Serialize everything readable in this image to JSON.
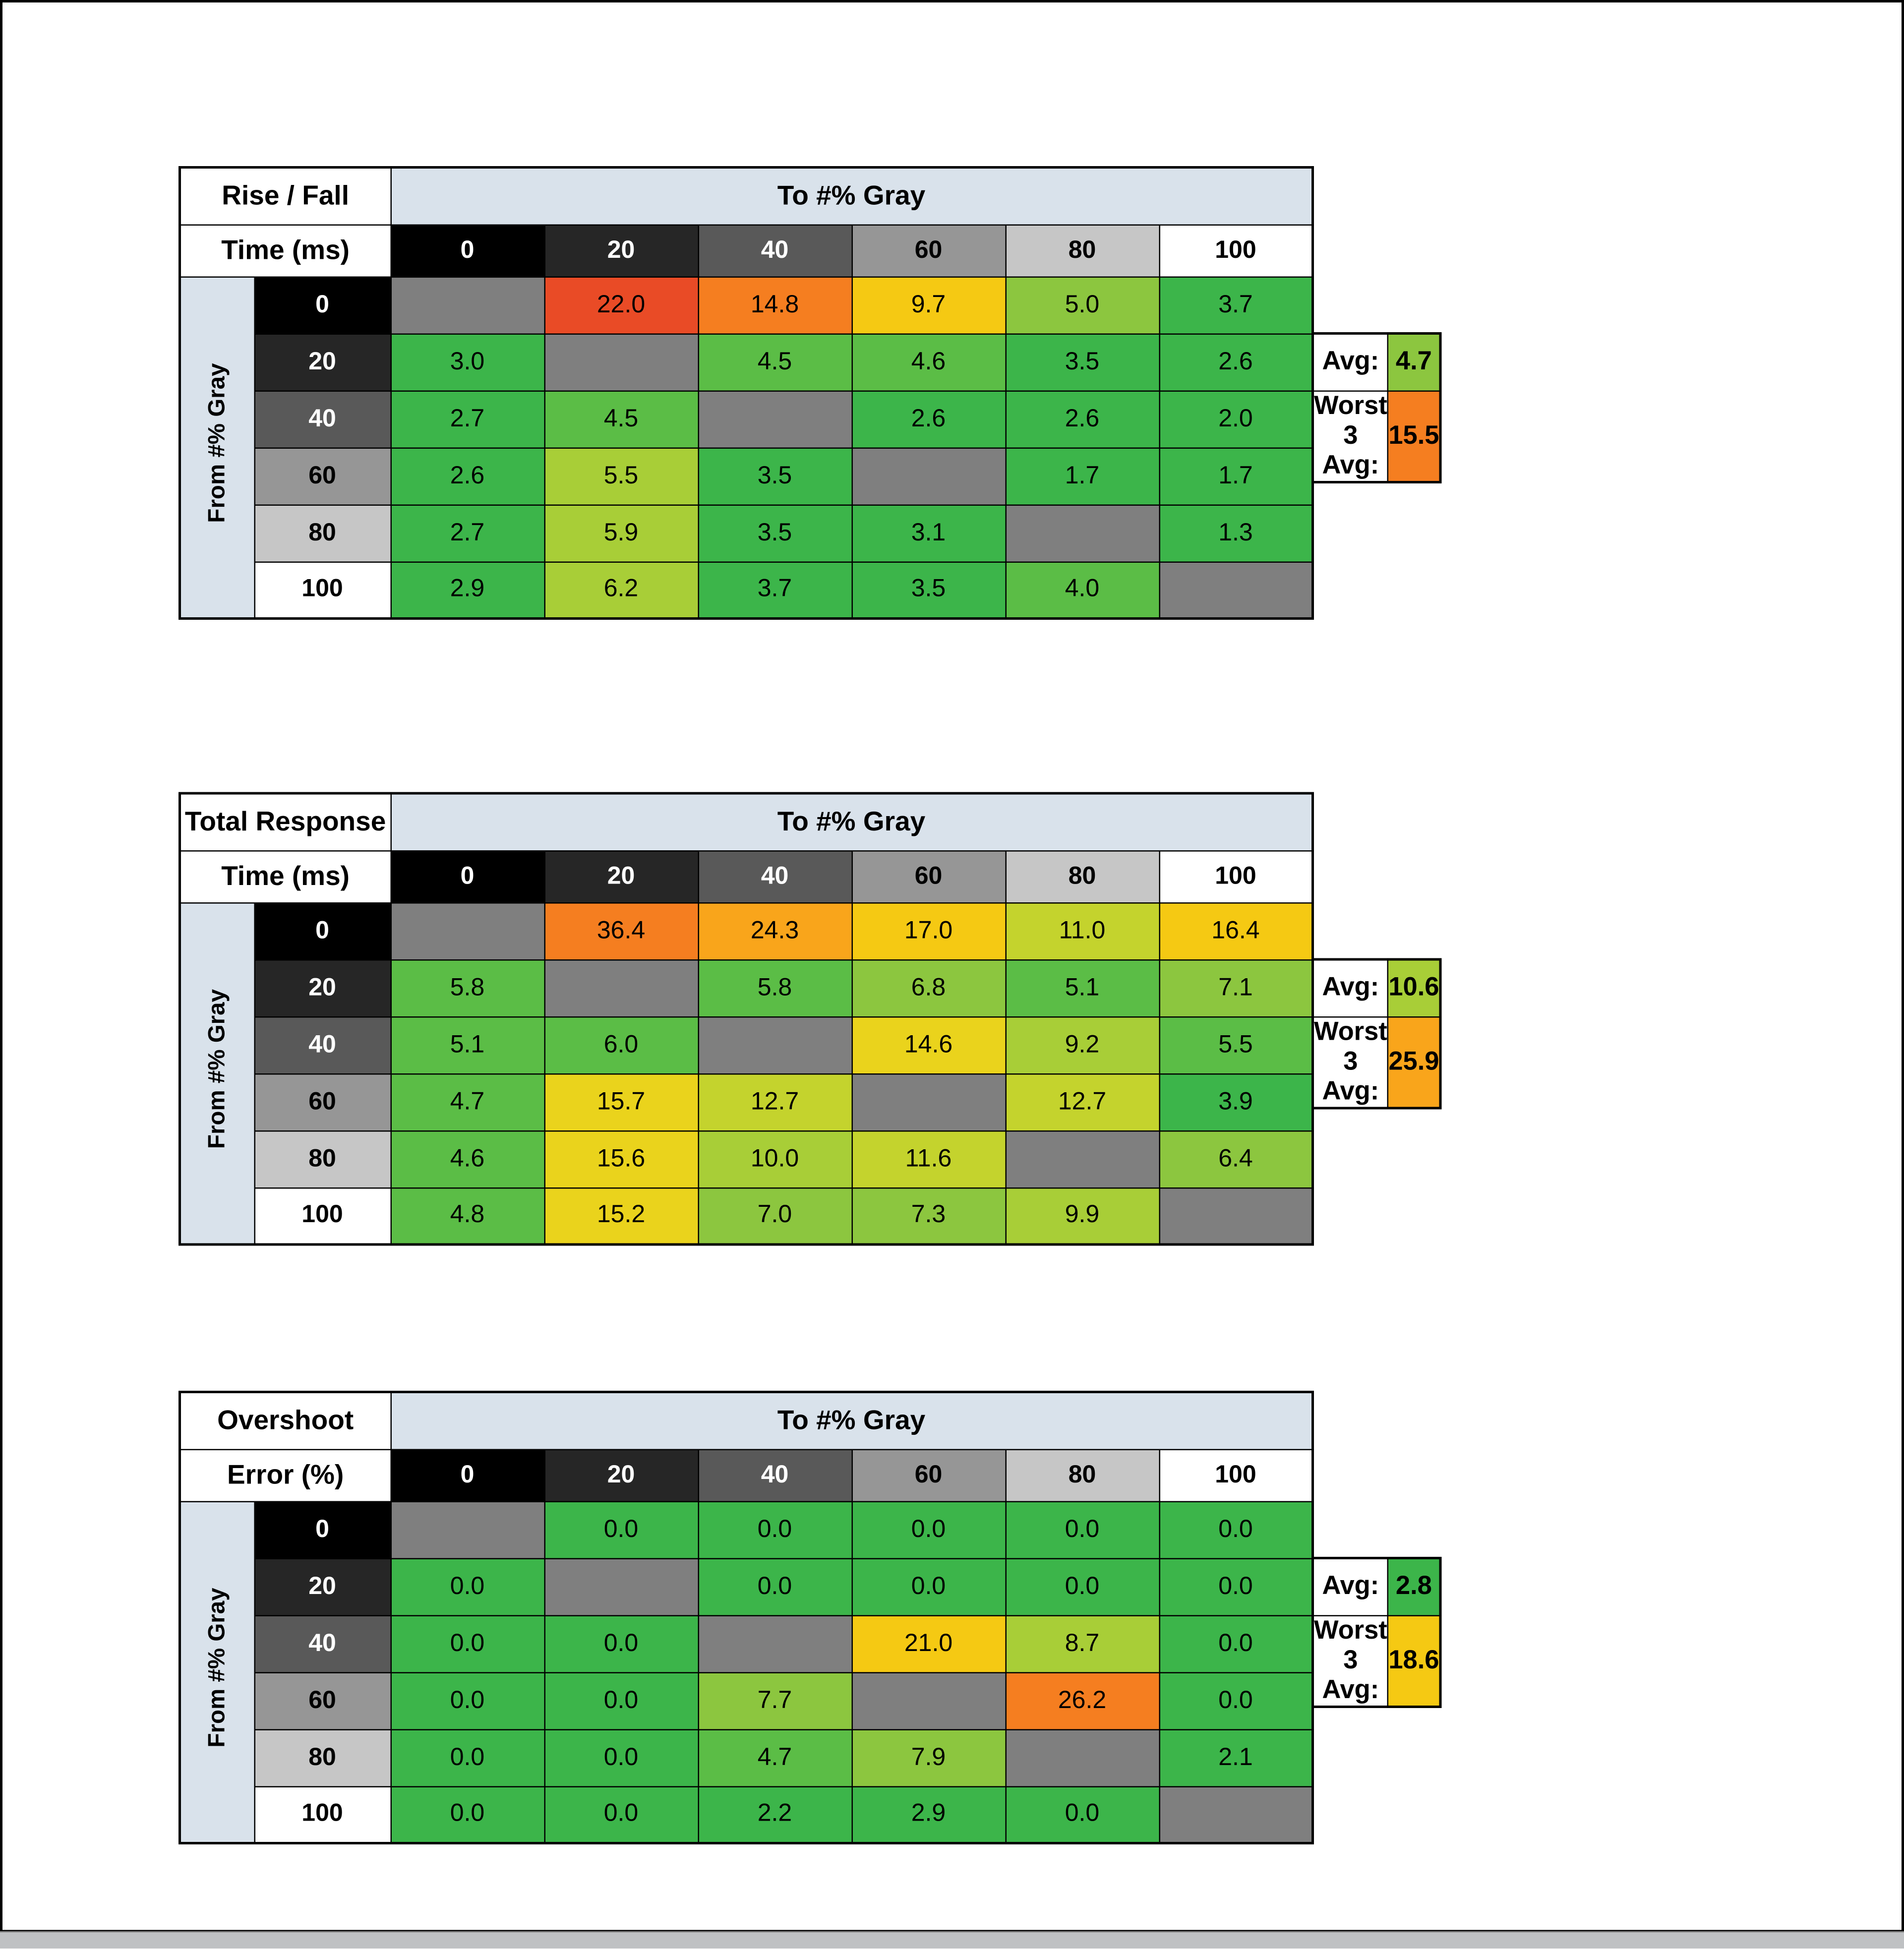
{
  "shared": {
    "to_label": "To #% Gray",
    "from_label": "From #% Gray",
    "col_headers": [
      "0",
      "20",
      "40",
      "60",
      "80",
      "100"
    ],
    "row_headers": [
      "0",
      "20",
      "40",
      "60",
      "80",
      "100"
    ],
    "avg_label": "Avg:",
    "worst_label": "Worst 3 Avg:",
    "header_band_bg": "#D9E2EB",
    "diagonal_bg": "#7F7F7F",
    "gray_scale_bg": [
      "#000000",
      "#262626",
      "#595959",
      "#969696",
      "#C6C6C6",
      "#FFFFFF"
    ],
    "gray_scale_fg": [
      "#FFFFFF",
      "#FFFFFF",
      "#FFFFFF",
      "#000000",
      "#000000",
      "#000000"
    ]
  },
  "chart_data": [
    {
      "type": "heatmap",
      "title": "Rise / Fall Time (ms)",
      "xlabel": "To #% Gray",
      "ylabel": "From #% Gray",
      "x_categories": [
        0,
        20,
        40,
        60,
        80,
        100
      ],
      "y_categories": [
        0,
        20,
        40,
        60,
        80,
        100
      ],
      "values": [
        [
          null,
          22.0,
          14.8,
          9.7,
          5.0,
          3.7
        ],
        [
          3.0,
          null,
          4.5,
          4.6,
          3.5,
          2.6
        ],
        [
          2.7,
          4.5,
          null,
          2.6,
          2.6,
          2.0
        ],
        [
          2.6,
          5.5,
          3.5,
          null,
          1.7,
          1.7
        ],
        [
          2.7,
          5.9,
          3.5,
          3.1,
          null,
          1.3
        ],
        [
          2.9,
          6.2,
          3.7,
          3.5,
          4.0,
          null
        ]
      ],
      "avg": 4.7,
      "worst_3_avg": 15.5
    },
    {
      "type": "heatmap",
      "title": "Total Response Time (ms)",
      "xlabel": "To #% Gray",
      "ylabel": "From #% Gray",
      "x_categories": [
        0,
        20,
        40,
        60,
        80,
        100
      ],
      "y_categories": [
        0,
        20,
        40,
        60,
        80,
        100
      ],
      "values": [
        [
          null,
          36.4,
          24.3,
          17.0,
          11.0,
          16.4
        ],
        [
          5.8,
          null,
          5.8,
          6.8,
          5.1,
          7.1
        ],
        [
          5.1,
          6.0,
          null,
          14.6,
          9.2,
          5.5
        ],
        [
          4.7,
          15.7,
          12.7,
          null,
          12.7,
          3.9
        ],
        [
          4.6,
          15.6,
          10.0,
          11.6,
          null,
          6.4
        ],
        [
          4.8,
          15.2,
          7.0,
          7.3,
          9.9,
          null
        ]
      ],
      "avg": 10.6,
      "worst_3_avg": 25.9
    },
    {
      "type": "heatmap",
      "title": "Overshoot Error (%)",
      "xlabel": "To #% Gray",
      "ylabel": "From #% Gray",
      "x_categories": [
        0,
        20,
        40,
        60,
        80,
        100
      ],
      "y_categories": [
        0,
        20,
        40,
        60,
        80,
        100
      ],
      "values": [
        [
          null,
          0.0,
          0.0,
          0.0,
          0.0,
          0.0
        ],
        [
          0.0,
          null,
          0.0,
          0.0,
          0.0,
          0.0
        ],
        [
          0.0,
          0.0,
          null,
          21.0,
          8.7,
          0.0
        ],
        [
          0.0,
          0.0,
          7.7,
          null,
          26.2,
          0.0
        ],
        [
          0.0,
          0.0,
          4.7,
          7.9,
          null,
          2.1
        ],
        [
          0.0,
          0.0,
          2.2,
          2.9,
          0.0,
          null
        ]
      ],
      "avg": 2.8,
      "worst_3_avg": 18.6
    }
  ],
  "tables": [
    {
      "title_line1": "Rise / Fall",
      "title_line2": "Time (ms)",
      "avg": {
        "value": "4.7",
        "color": "#8CC63F"
      },
      "worst": {
        "value": "15.5",
        "color": "#F57E20"
      },
      "cell_colors": [
        [
          null,
          "#E94B26",
          "#F57E20",
          "#F5C913",
          "#8CC63F",
          "#3CB54A"
        ],
        [
          "#3CB54A",
          null,
          "#5BBD46",
          "#5BBD46",
          "#3CB54A",
          "#3CB54A"
        ],
        [
          "#3CB54A",
          "#5BBD46",
          null,
          "#3CB54A",
          "#3CB54A",
          "#3CB54A"
        ],
        [
          "#3CB54A",
          "#A8CE37",
          "#3CB54A",
          null,
          "#3CB54A",
          "#3CB54A"
        ],
        [
          "#3CB54A",
          "#A8CE37",
          "#3CB54A",
          "#3CB54A",
          null,
          "#3CB54A"
        ],
        [
          "#3CB54A",
          "#A8CE37",
          "#3CB54A",
          "#3CB54A",
          "#5BBD46",
          null
        ]
      ]
    },
    {
      "title_line1": "Total Response",
      "title_line2": "Time (ms)",
      "avg": {
        "value": "10.6",
        "color": "#A8CE37"
      },
      "worst": {
        "value": "25.9",
        "color": "#F9A51B"
      },
      "cell_colors": [
        [
          null,
          "#F57E20",
          "#F9A51B",
          "#F5C913",
          "#C4D32D",
          "#F5C913"
        ],
        [
          "#5BBD46",
          null,
          "#5BBD46",
          "#8CC63F",
          "#5BBD46",
          "#8CC63F"
        ],
        [
          "#5BBD46",
          "#5BBD46",
          null,
          "#EAD31C",
          "#A8CE37",
          "#5BBD46"
        ],
        [
          "#5BBD46",
          "#EAD31C",
          "#C4D32D",
          null,
          "#C4D32D",
          "#3CB54A"
        ],
        [
          "#5BBD46",
          "#EAD31C",
          "#A8CE37",
          "#C4D32D",
          null,
          "#8CC63F"
        ],
        [
          "#5BBD46",
          "#EAD31C",
          "#8CC63F",
          "#8CC63F",
          "#A8CE37",
          null
        ]
      ]
    },
    {
      "title_line1": "Overshoot",
      "title_line2": "Error (%)",
      "avg": {
        "value": "2.8",
        "color": "#3CB54A"
      },
      "worst": {
        "value": "18.6",
        "color": "#F5C913"
      },
      "cell_colors": [
        [
          null,
          "#3CB54A",
          "#3CB54A",
          "#3CB54A",
          "#3CB54A",
          "#3CB54A"
        ],
        [
          "#3CB54A",
          null,
          "#3CB54A",
          "#3CB54A",
          "#3CB54A",
          "#3CB54A"
        ],
        [
          "#3CB54A",
          "#3CB54A",
          null,
          "#F5C913",
          "#A8CE37",
          "#3CB54A"
        ],
        [
          "#3CB54A",
          "#3CB54A",
          "#8CC63F",
          null,
          "#F57E20",
          "#3CB54A"
        ],
        [
          "#3CB54A",
          "#3CB54A",
          "#5BBD46",
          "#8CC63F",
          null,
          "#3CB54A"
        ],
        [
          "#3CB54A",
          "#3CB54A",
          "#3CB54A",
          "#3CB54A",
          "#3CB54A",
          null
        ]
      ]
    }
  ]
}
